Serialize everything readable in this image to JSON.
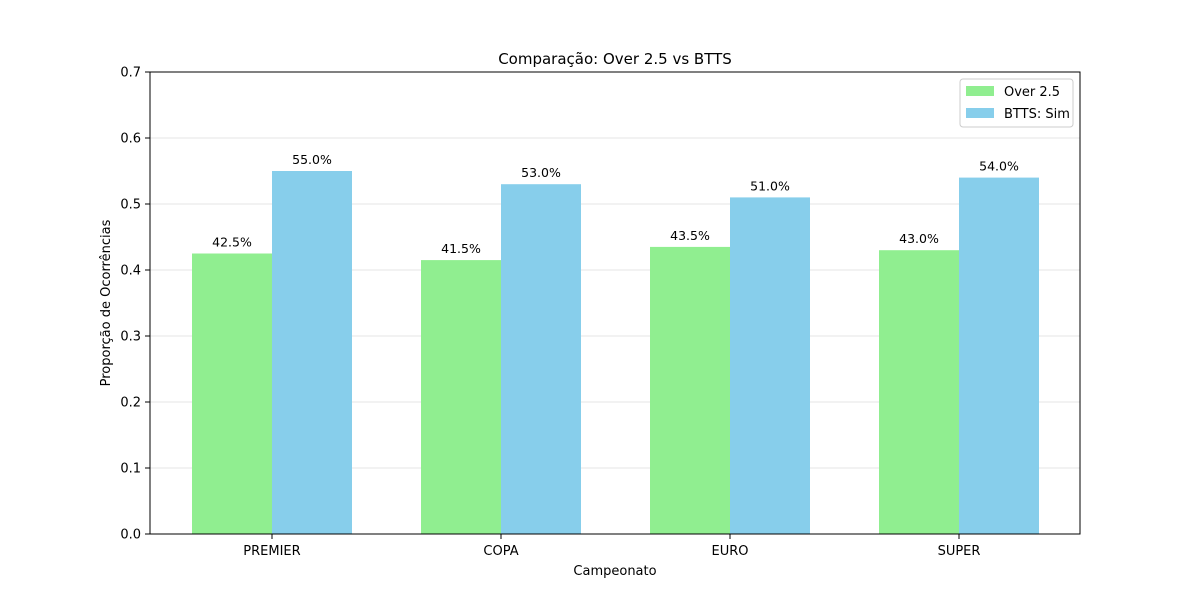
{
  "chart_data": {
    "type": "bar",
    "title": "Comparação: Over 2.5 vs BTTS",
    "xlabel": "Campeonato",
    "ylabel": "Proporção de Ocorrências",
    "categories": [
      "PREMIER",
      "COPA",
      "EURO",
      "SUPER"
    ],
    "series": [
      {
        "name": "Over 2.5",
        "values": [
          0.425,
          0.415,
          0.435,
          0.43
        ],
        "labels": [
          "42.5%",
          "41.5%",
          "43.5%",
          "43.0%"
        ],
        "color": "#90ee90"
      },
      {
        "name": "BTTS: Sim",
        "values": [
          0.55,
          0.53,
          0.51,
          0.54
        ],
        "labels": [
          "55.0%",
          "53.0%",
          "51.0%",
          "54.0%"
        ],
        "color": "#87ceeb"
      }
    ],
    "ylim": [
      0,
      0.7
    ],
    "yticks": [
      0,
      0.1,
      0.2,
      0.3,
      0.4,
      0.5,
      0.6,
      0.7
    ],
    "ytick_labels": [
      "0.0",
      "0.1",
      "0.2",
      "0.3",
      "0.4",
      "0.5",
      "0.6",
      "0.7"
    ],
    "grid": "y",
    "legend_position": "top-right"
  }
}
